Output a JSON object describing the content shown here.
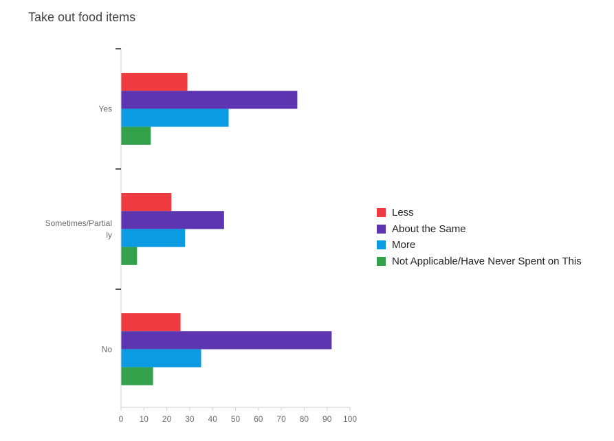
{
  "chart_data": {
    "type": "bar",
    "orientation": "horizontal",
    "title": "Take out food items",
    "categories": [
      "Yes",
      "Sometimes/Partially",
      "No"
    ],
    "category_display": [
      [
        "Yes"
      ],
      [
        "Sometimes/Partial",
        "ly"
      ],
      [
        "No"
      ]
    ],
    "series": [
      {
        "name": "Less",
        "color": "#ef3a3f",
        "values": [
          29,
          22,
          26
        ]
      },
      {
        "name": "About the Same",
        "color": "#5e35b1",
        "values": [
          77,
          45,
          92
        ]
      },
      {
        "name": "More",
        "color": "#0b9be2",
        "values": [
          47,
          28,
          35
        ]
      },
      {
        "name": "Not Applicable/Have Never Spent on This",
        "color": "#33a04a",
        "values": [
          13,
          7,
          14
        ]
      }
    ],
    "xlim": [
      0,
      100
    ],
    "xticks": [
      0,
      10,
      20,
      30,
      40,
      50,
      60,
      70,
      80,
      90,
      100
    ],
    "xlabel": "",
    "ylabel": "",
    "grid": false,
    "legend_position": "right"
  }
}
